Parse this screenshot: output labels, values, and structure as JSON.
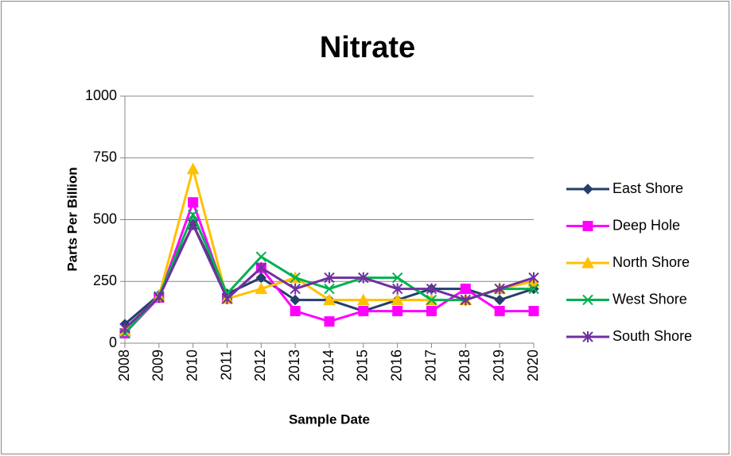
{
  "chart_data": {
    "type": "line",
    "title": "Nitrate",
    "x_label": "Sample Date",
    "y_label": "Parts Per Billion",
    "categories": [
      "2008",
      "2009",
      "2010",
      "2011",
      "2012",
      "2013",
      "2014",
      "2015",
      "2016",
      "2017",
      "2018",
      "2019",
      "2020"
    ],
    "series": [
      {
        "name": "East Shore",
        "color": "#243f6b",
        "marker": "diamond",
        "values": [
          77,
          195,
          480,
          200,
          265,
          175,
          175,
          130,
          175,
          220,
          220,
          175,
          220
        ]
      },
      {
        "name": "Deep Hole",
        "color": "#ff00ff",
        "marker": "square",
        "values": [
          40,
          185,
          570,
          180,
          305,
          130,
          88,
          130,
          130,
          130,
          220,
          130,
          130
        ]
      },
      {
        "name": "North Shore",
        "color": "#ffc000",
        "marker": "triangle",
        "values": [
          50,
          190,
          705,
          180,
          220,
          265,
          175,
          175,
          175,
          175,
          175,
          220,
          250
        ]
      },
      {
        "name": "West Shore",
        "color": "#00b050",
        "marker": "x",
        "values": [
          40,
          190,
          520,
          200,
          350,
          265,
          220,
          265,
          265,
          175,
          175,
          220,
          220
        ]
      },
      {
        "name": "South Shore",
        "color": "#7030a0",
        "marker": "asterisk",
        "values": [
          60,
          185,
          480,
          180,
          305,
          220,
          265,
          265,
          220,
          220,
          175,
          220,
          265
        ]
      }
    ],
    "ylim": [
      0,
      1000
    ],
    "yticks": [
      0,
      250,
      500,
      750,
      1000
    ],
    "grid": true,
    "legend": "right"
  }
}
